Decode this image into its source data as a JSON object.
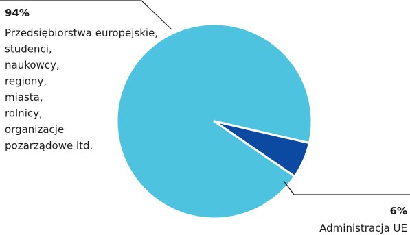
{
  "chart_data": {
    "type": "pie",
    "slices": [
      {
        "value": 94,
        "percent_label": "94%",
        "label_lines": [
          "Przedsiębiorstwa europejskie,",
          "studenci,",
          "naukowcy,",
          "regiony,",
          "miasta,",
          "rolnicy,",
          "organizacje",
          "pozarządowe itd."
        ],
        "color": "#4ec3e0"
      },
      {
        "value": 6,
        "percent_label": "6%",
        "label_lines": [
          "Administracja UE"
        ],
        "color": "#0b4aa0"
      }
    ],
    "legend": "none",
    "leader_line_color": "#1a1a1a"
  }
}
